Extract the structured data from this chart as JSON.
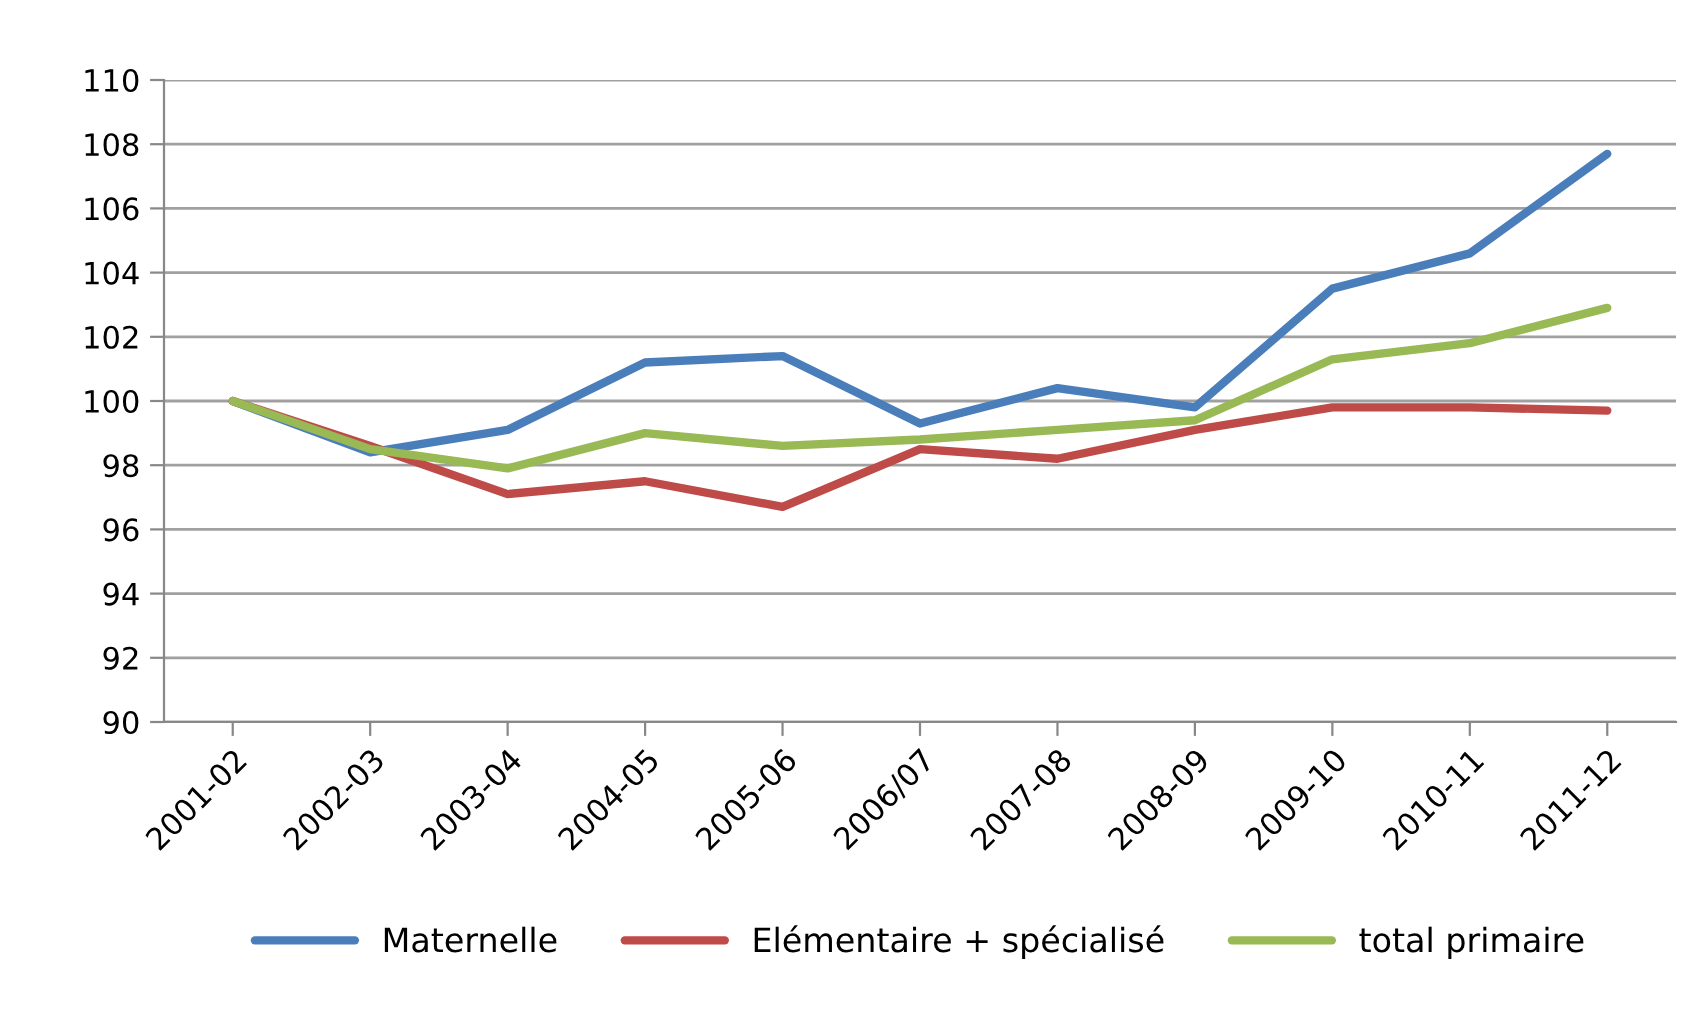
{
  "chart_data": {
    "type": "line",
    "categories": [
      "2001-02",
      "2002-03",
      "2003-04",
      "2004-05",
      "2005-06",
      "2006/07",
      "2007-08",
      "2008-09",
      "2009-10",
      "2010-11",
      "2011-12"
    ],
    "series": [
      {
        "name": "Maternelle",
        "color": "#4a7ebb",
        "values": [
          100,
          98.4,
          99.1,
          101.2,
          101.4,
          99.3,
          100.4,
          99.8,
          103.5,
          104.6,
          107.7
        ]
      },
      {
        "name": "Elémentaire + spécialisé",
        "color": "#be4b48",
        "values": [
          100,
          98.6,
          97.1,
          97.5,
          96.7,
          98.5,
          98.2,
          99.1,
          99.8,
          99.8,
          99.7
        ]
      },
      {
        "name": "total primaire",
        "color": "#98b954",
        "values": [
          100,
          98.5,
          97.9,
          99.0,
          98.6,
          98.8,
          99.1,
          99.4,
          101.3,
          101.8,
          102.9
        ]
      }
    ],
    "ylim": [
      90,
      110
    ],
    "yticks": [
      90,
      92,
      94,
      96,
      98,
      100,
      102,
      104,
      106,
      108,
      110
    ],
    "grid": "y",
    "legend": "bottom",
    "marker": "none",
    "line_style": "solid"
  }
}
